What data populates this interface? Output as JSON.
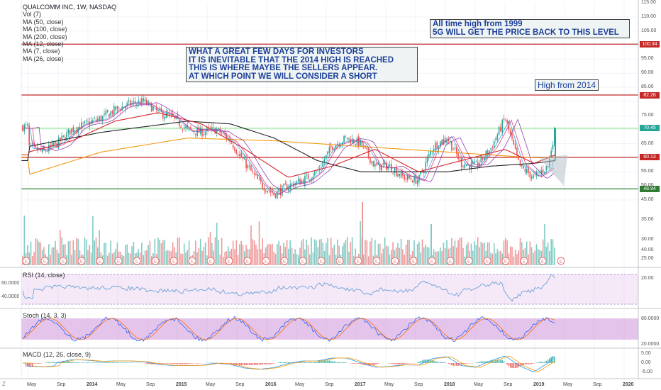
{
  "legend": {
    "symbol": "QUALCOMM INC, 1W, NASDAQ",
    "lines": [
      "Vol (7)",
      "MA (50, close)",
      "MA (100, close)",
      "MA (200, close)",
      "MA (12, close)",
      "MA (7, close)",
      "MA (26, close)"
    ]
  },
  "notes": {
    "box1": [
      "WHAT A GREAT FEW DAYS FOR INVESTORS",
      "IT IS INEVITABLE THAT THE 2014 HIGH IS REACHED",
      "THIS IS WHERE MAYBE THE SELLERS APPEAR.",
      "AT WHICH POINT WE WILL CONSIDER A SHORT"
    ],
    "box2": [
      "All time high from 1999",
      "5G WILL GET THE PRICE BACK TO THIS LEVEL"
    ],
    "box3": "High from 2014"
  },
  "panes": {
    "rsi": "RSI (14, close)",
    "stoch": "Stoch (14, 3, 3)",
    "macd": "MACD (12, 26, close, 9)"
  },
  "price_tags": [
    {
      "label": "100.34",
      "value": 100.34,
      "color": "#c62828"
    },
    {
      "label": "82.26",
      "value": 82.26,
      "color": "#c62828"
    },
    {
      "label": "70.45",
      "value": 70.45,
      "color": "#26a69a"
    },
    {
      "label": "60.13",
      "value": 60.13,
      "color": "#c62828"
    },
    {
      "label": "48.94",
      "value": 48.94,
      "color": "#2e7d32"
    }
  ],
  "right_axis": {
    "price_ticks": [
      "115.00",
      "110.00",
      "105.00",
      "95.00",
      "90.00",
      "85.00",
      "75.00",
      "65.00",
      "55.00",
      "50.00",
      "45.00",
      "40.00",
      "35.00",
      "30.00",
      "25.00",
      "20.00"
    ],
    "rsi_ticks": [],
    "stoch_ticks": [
      "80.0000",
      "20.0000"
    ],
    "macd_ticks": [
      "5.00",
      "0.00",
      "-5.00"
    ]
  },
  "left_axis": {
    "rsi_ticks": [
      "60.0000",
      "40.0000"
    ]
  },
  "x_axis": {
    "labels": [
      {
        "t": "May",
        "b": false
      },
      {
        "t": "Sep",
        "b": false
      },
      {
        "t": "2014",
        "b": true
      },
      {
        "t": "May",
        "b": false
      },
      {
        "t": "Sep",
        "b": false
      },
      {
        "t": "2015",
        "b": true
      },
      {
        "t": "May",
        "b": false
      },
      {
        "t": "Sep",
        "b": false
      },
      {
        "t": "2016",
        "b": true
      },
      {
        "t": "May",
        "b": false
      },
      {
        "t": "Sep",
        "b": false
      },
      {
        "t": "2017",
        "b": true
      },
      {
        "t": "May",
        "b": false
      },
      {
        "t": "Sep",
        "b": false
      },
      {
        "t": "2018",
        "b": true
      },
      {
        "t": "May",
        "b": false
      },
      {
        "t": "Sep",
        "b": false
      },
      {
        "t": "2019",
        "b": true
      },
      {
        "t": "May",
        "b": false
      },
      {
        "t": "Sep",
        "b": false
      },
      {
        "t": "2020",
        "b": true
      }
    ]
  },
  "earnings_marker": "E",
  "toolbar_left": "Z",
  "chart_data": {
    "type": "line",
    "title": "QUALCOMM INC, 1W, NASDAQ",
    "ylim": [
      40,
      117
    ],
    "x_range": [
      "2013-03",
      "2020-01"
    ],
    "horizontal_levels": [
      {
        "value": 100.34,
        "color": "#c62828"
      },
      {
        "value": 82.26,
        "color": "#c62828"
      },
      {
        "value": 60.13,
        "color": "#c62828"
      },
      {
        "value": 48.94,
        "color": "#2e7d32"
      },
      {
        "value": 70.45,
        "color": "#66dd66"
      }
    ],
    "series": [
      {
        "name": "close",
        "color": "#26a69a",
        "x": [
          "2013-03",
          "2013-05",
          "2013-07",
          "2013-09",
          "2013-11",
          "2014-01",
          "2014-03",
          "2014-05",
          "2014-07",
          "2014-09",
          "2014-11",
          "2015-01",
          "2015-03",
          "2015-05",
          "2015-07",
          "2015-09",
          "2015-11",
          "2016-01",
          "2016-03",
          "2016-05",
          "2016-07",
          "2016-09",
          "2016-11",
          "2017-01",
          "2017-03",
          "2017-05",
          "2017-07",
          "2017-09",
          "2017-11",
          "2018-01",
          "2018-03",
          "2018-05",
          "2018-07",
          "2018-09",
          "2018-11",
          "2019-01",
          "2019-03",
          "2019-04"
        ],
        "values": [
          64,
          62,
          65,
          70,
          72,
          74,
          77,
          79,
          80,
          76,
          74,
          70,
          69,
          70,
          66,
          58,
          51,
          47,
          50,
          52,
          55,
          64,
          67,
          65,
          57,
          57,
          53,
          52,
          64,
          67,
          58,
          57,
          63,
          74,
          57,
          53,
          57,
          71
        ]
      },
      {
        "name": "MA (200, close)",
        "color": "#f39c12",
        "x": [
          "2013-03",
          "2014-01",
          "2015-01",
          "2016-01",
          "2017-01",
          "2018-01",
          "2019-01",
          "2019-04"
        ],
        "values": [
          54,
          62,
          67,
          66,
          64,
          62,
          60,
          60
        ]
      },
      {
        "name": "MA (100, close)",
        "color": "#222222",
        "x": [
          "2013-03",
          "2014-01",
          "2015-01",
          "2015-07",
          "2016-01",
          "2016-07",
          "2017-01",
          "2017-07",
          "2018-01",
          "2018-07",
          "2019-01",
          "2019-04"
        ],
        "values": [
          64,
          69,
          73,
          72,
          67,
          59,
          55,
          55,
          55,
          57,
          58,
          59
        ]
      },
      {
        "name": "MA (50, close)",
        "color": "#d62728",
        "x": [
          "2013-03",
          "2013-09",
          "2014-03",
          "2014-09",
          "2015-03",
          "2015-09",
          "2016-03",
          "2016-09",
          "2017-03",
          "2017-09",
          "2018-03",
          "2018-09",
          "2019-01",
          "2019-04"
        ],
        "values": [
          62,
          66,
          73,
          76,
          72,
          63,
          53,
          57,
          63,
          55,
          59,
          63,
          58,
          61
        ]
      }
    ]
  }
}
